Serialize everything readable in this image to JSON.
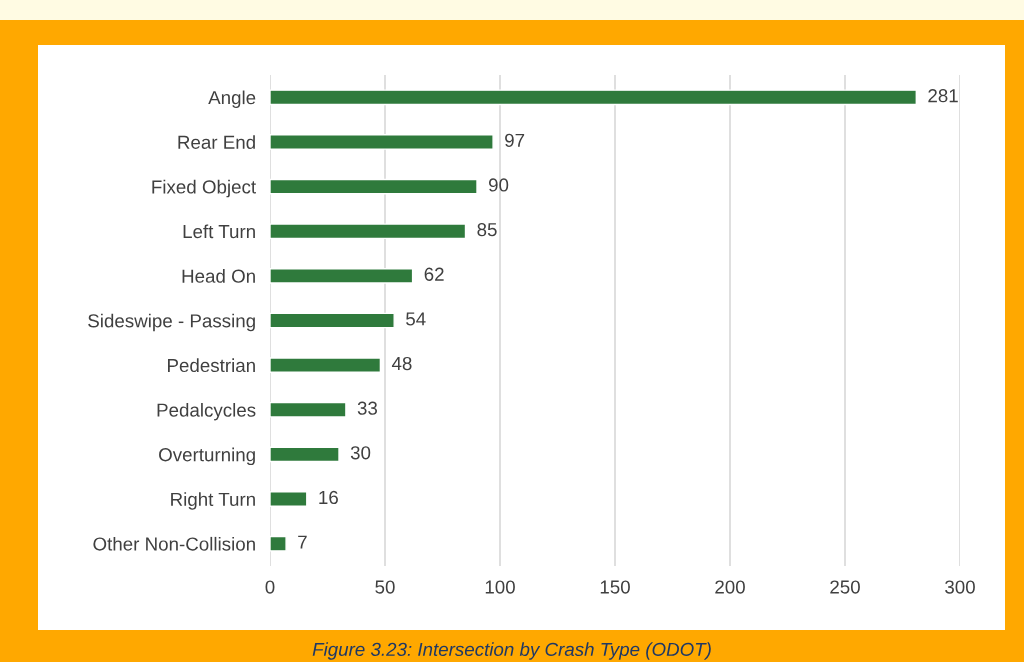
{
  "chart_data": {
    "type": "bar",
    "orientation": "horizontal",
    "categories": [
      "Angle",
      "Rear End",
      "Fixed Object",
      "Left Turn",
      "Head On",
      "Sideswipe - Passing",
      "Pedestrian",
      "Pedalcycles",
      "Overturning",
      "Right Turn",
      "Other Non-Collision"
    ],
    "values": [
      281,
      97,
      90,
      85,
      62,
      54,
      48,
      33,
      30,
      16,
      7
    ],
    "color": "#2f7a3c",
    "xlim": [
      0,
      300
    ],
    "xticks": [
      0,
      50,
      100,
      150,
      200,
      250,
      300
    ],
    "grid": "x",
    "data_labels": true,
    "legend": false,
    "annotations": [
      "Figure 3.23: Intersection by Crash Type (ODOT)"
    ]
  }
}
